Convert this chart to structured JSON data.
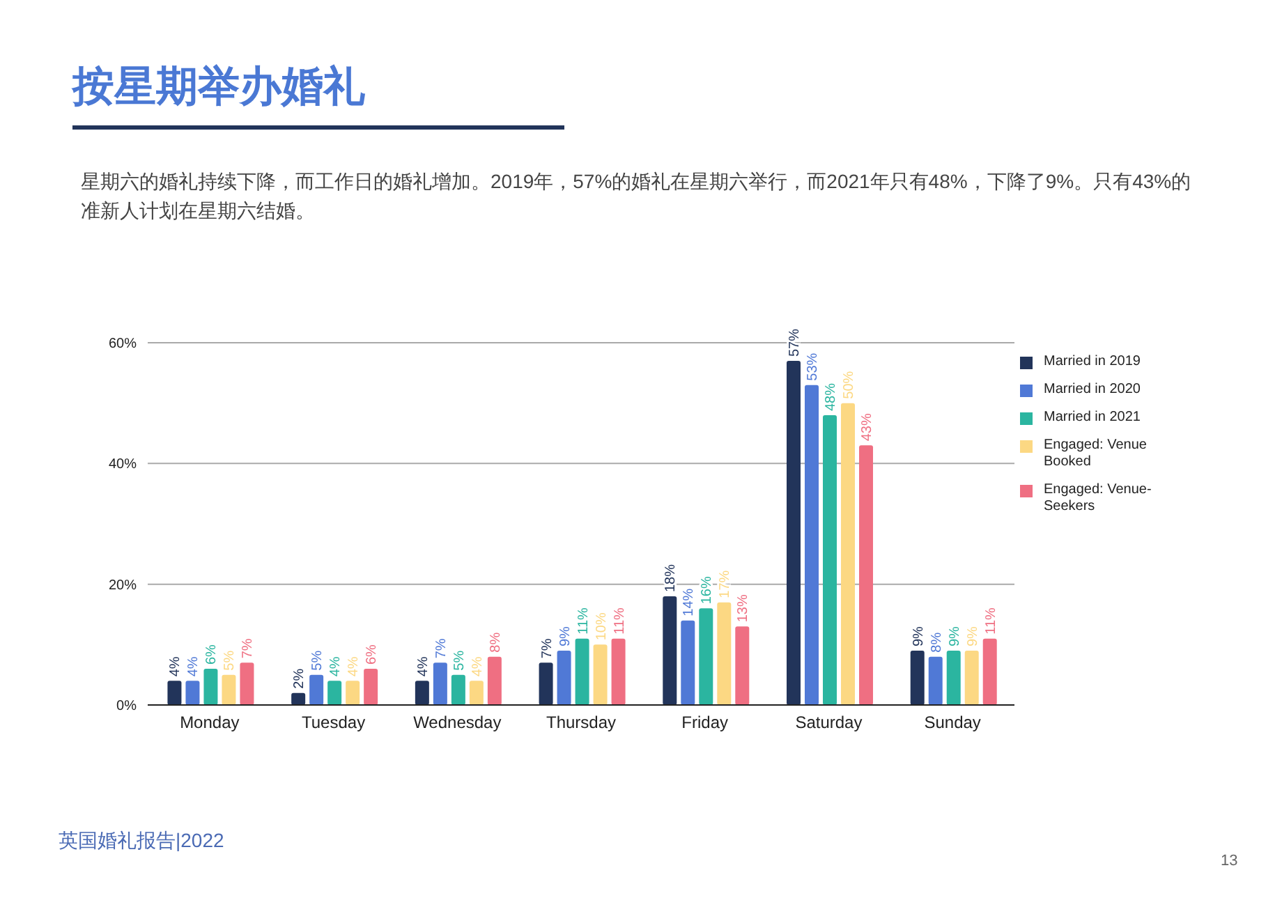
{
  "chart_data": {
    "type": "bar",
    "title": "按星期举办婚礼",
    "subtitle": "星期六的婚礼持续下降，而工作日的婚礼增加。2019年，57%的婚礼在星期六举行，而2021年只有48%，下降了9%。只有43%的准新人计划在星期六结婚。",
    "categories": [
      "Monday",
      "Tuesday",
      "Wednesday",
      "Thursday",
      "Friday",
      "Saturday",
      "Sunday"
    ],
    "series": [
      {
        "name": "Married in 2019",
        "color": "#22345a",
        "values": [
          4,
          2,
          4,
          7,
          18,
          57,
          9
        ],
        "value_labels": [
          "4%",
          "2%",
          "4%",
          "7%",
          "18%",
          "57%",
          "9%"
        ]
      },
      {
        "name": "Married in 2020",
        "color": "#5079d6",
        "values": [
          4,
          5,
          7,
          9,
          14,
          53,
          8
        ],
        "value_labels": [
          "4%",
          "5%",
          "7%",
          "9%",
          "14%",
          "53%",
          "8%"
        ]
      },
      {
        "name": "Married in 2021",
        "color": "#2bb5a0",
        "values": [
          6,
          4,
          5,
          11,
          16,
          48,
          9
        ],
        "value_labels": [
          "6%",
          "4%",
          "5%",
          "11%",
          "16%",
          "48%",
          "9%"
        ]
      },
      {
        "name": "Engaged: Venue Booked",
        "color": "#fcd883",
        "values": [
          5,
          4,
          4,
          10,
          17,
          50,
          9
        ],
        "value_labels": [
          "5%",
          "4%",
          "4%",
          "10%",
          "17%",
          "50%",
          "9%"
        ]
      },
      {
        "name": "Engaged: Venue-Seekers",
        "color": "#ef6f82",
        "values": [
          7,
          6,
          8,
          11,
          13,
          43,
          11
        ],
        "value_labels": [
          "7%",
          "6%",
          "8%",
          "11%",
          "13%",
          "43%",
          "11%"
        ]
      }
    ],
    "ylim": [
      0,
      60
    ],
    "yticks": [
      {
        "value": 0,
        "label": "0%"
      },
      {
        "value": 20,
        "label": "20%"
      },
      {
        "value": 40,
        "label": "40%"
      },
      {
        "value": 60,
        "label": "60%"
      }
    ],
    "grid": "y",
    "legend": "right",
    "annotations": [
      "英国婚礼报告|2022",
      "13"
    ]
  }
}
